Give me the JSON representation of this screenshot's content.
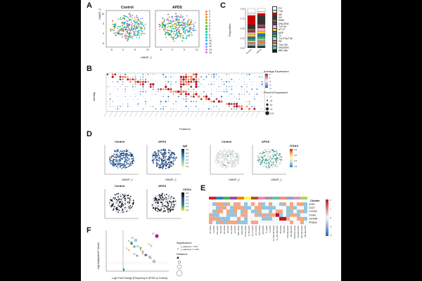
{
  "figure": {
    "panel_labels": [
      "A",
      "B",
      "C",
      "D",
      "E",
      "F"
    ],
    "panelA": {
      "conditions": [
        "Control",
        "APDS"
      ],
      "xlabel": "UMAP_1",
      "ylabel": "UMAP_2",
      "xticks": [
        "-5",
        "0",
        "5",
        "10"
      ],
      "yticks": [
        "10",
        "5",
        "0",
        "-5"
      ],
      "cluster_legend": [
        "0",
        "1",
        "2",
        "3",
        "4",
        "5",
        "6",
        "7",
        "8",
        "9",
        "10",
        "11",
        "12",
        "13",
        "14"
      ],
      "cluster_colors": [
        "#f8766d",
        "#e7851e",
        "#d09400",
        "#b2a100",
        "#89ac00",
        "#45b500",
        "#00bc51",
        "#00c087",
        "#00c0b2",
        "#00bcd6",
        "#00b3f2",
        "#29a3ff",
        "#9c8dff",
        "#d277ff",
        "#f066ea"
      ]
    },
    "panelC": {
      "ylabel": "Proportion",
      "yticks": [
        "1.00",
        "0.75",
        "0.50",
        "0.25",
        "0.00"
      ],
      "groups": [
        "Control",
        "APDS"
      ],
      "legend": [
        "FO",
        "T3a",
        "MZ",
        "GC",
        "SMM",
        "DN1/DN4",
        "T1/T3a",
        "aT1-P",
        "MZP",
        "T1",
        "T1L/T3a-T3b",
        "PB",
        "T3a-T3b",
        "DN2/DN3",
        "ABC-like"
      ],
      "legend_colors": [
        "#ffffff",
        "#ffe0e0",
        "#cc0000",
        "#333333",
        "#9b5d2d",
        "#7a2c8a",
        "#f4b6c2",
        "#ffd400",
        "#2a6fbb",
        "#3ab54a",
        "#9ed8f0",
        "#eb7d2e",
        "#b5b5b5",
        "#55c2c4",
        "#1a1a1a"
      ]
    },
    "panelB": {
      "ylabel": "Identity",
      "xlabel": "Features",
      "legend_expr_title": "Average Expression",
      "legend_expr_ticks": [
        "2",
        "1",
        "0",
        "-1",
        "-2"
      ],
      "legend_pct_title": "Percent Expressed",
      "legend_pct_values": [
        "0",
        "25",
        "50",
        "75",
        "100"
      ]
    },
    "panelD": {
      "row1_titles": [
        "Control",
        "APDS",
        "Control",
        "APDS"
      ],
      "row2_titles": [
        "Control",
        "APDS"
      ],
      "xlabel": "UMAP_1",
      "ylabel": "UMAP_2",
      "scale1_title": "IgD",
      "scale1_ticks": [
        "3.5",
        "3.0",
        "2.5",
        "2.0",
        "1.5",
        "1.0"
      ],
      "scale2_title": "ITGAX",
      "scale2_ticks": [
        "2.5",
        "2.0",
        "1.5",
        "1.0"
      ],
      "scale3_title": "CD11c",
      "scale3_ticks": [
        "3.5",
        "3.0",
        "2.5",
        "2.0",
        "1.5",
        "1.0"
      ]
    },
    "panelE": {
      "cluster_title": "Cluster",
      "genes": [
        "IGHD",
        "CD27",
        "CXCR5",
        "ITGAX",
        "JCHAIN",
        "PRDM1"
      ],
      "scale_ticks": [
        "2",
        "1",
        "0",
        "-1",
        "-2"
      ],
      "columns": [
        "FO-Control",
        "FO-APDS",
        "T3a-Control",
        "T3a-APDS",
        "MZ-Control",
        "MZ-APDS",
        "GC-Control",
        "GC-APDS",
        "SMM-Control",
        "SMM-APDS",
        "T1/T3a-Control",
        "T1/T3a-APDS",
        "aT1-P-Control",
        "aT1-P-APDS",
        "MZP-Control",
        "MZP-APDS",
        "T1-Control",
        "T1-APDS",
        "T1L/T3a-T3b-Control",
        "T1L/T3a-T3b-APDS",
        "PB-Control",
        "PB-APDS",
        "T3a-T3b-Control",
        "T3a-T3b-APDS",
        "DN2/DN3-Control",
        "DN2/DN3-APDS",
        "ABC-like-Control",
        "ABC-like-APDS"
      ]
    },
    "panelF": {
      "xlabel": "Log2 Fold Change (Frequency in APDS vs Control)",
      "ylabel": "-log10(Adjusted P-Value)",
      "legend_sig_title": "Significance",
      "legend_sig_items": [
        "p_adjusted < 0.05",
        "p_adjusted >= 0.05"
      ],
      "legend_dist_title": "Distance",
      "point_labels": [
        "0",
        "14",
        "4",
        "10",
        "13",
        "6",
        "11",
        "9",
        "7",
        "12",
        "3",
        "5"
      ]
    }
  }
}
